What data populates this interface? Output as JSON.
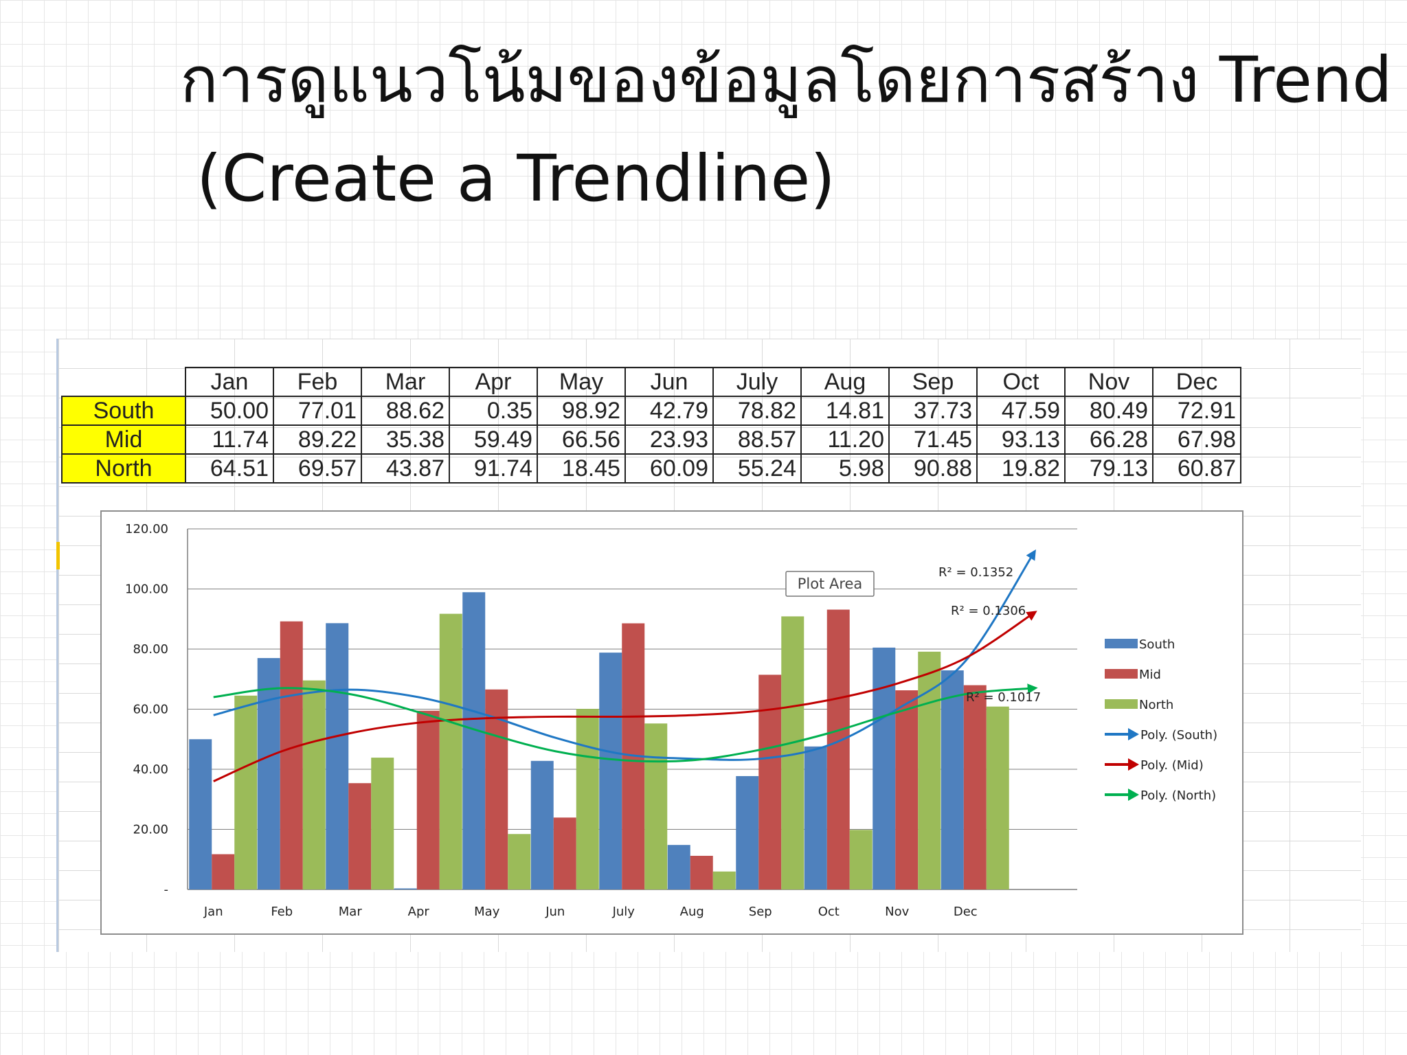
{
  "slide": {
    "title_thai": "การดูแนวโน้มของข้อมูลโดยการสร้าง",
    "title_en": "Trend",
    "subtitle": "(Create a Trendline)"
  },
  "table": {
    "headers": [
      "Jan",
      "Feb",
      "Mar",
      "Apr",
      "May",
      "Jun",
      "July",
      "Aug",
      "Sep",
      "Oct",
      "Nov",
      "Dec"
    ],
    "rows": [
      {
        "label": "South",
        "values": [
          "50.00",
          "77.01",
          "88.62",
          "0.35",
          "98.92",
          "42.79",
          "78.82",
          "14.81",
          "37.73",
          "47.59",
          "80.49",
          "72.91"
        ]
      },
      {
        "label": "Mid",
        "values": [
          "11.74",
          "89.22",
          "35.38",
          "59.49",
          "66.56",
          "23.93",
          "88.57",
          "11.20",
          "71.45",
          "93.13",
          "66.28",
          "67.98"
        ]
      },
      {
        "label": "North",
        "values": [
          "64.51",
          "69.57",
          "43.87",
          "91.74",
          "18.45",
          "60.09",
          "55.24",
          "5.98",
          "90.88",
          "19.82",
          "79.13",
          "60.87"
        ]
      }
    ]
  },
  "chart_data": {
    "type": "bar",
    "categories": [
      "Jan",
      "Feb",
      "Mar",
      "Apr",
      "May",
      "Jun",
      "July",
      "Aug",
      "Sep",
      "Oct",
      "Nov",
      "Dec"
    ],
    "series": [
      {
        "name": "South",
        "values": [
          50.0,
          77.01,
          88.62,
          0.35,
          98.92,
          42.79,
          78.82,
          14.81,
          37.73,
          47.59,
          80.49,
          72.91
        ],
        "color": "#4f81bd"
      },
      {
        "name": "Mid",
        "values": [
          11.74,
          89.22,
          35.38,
          59.49,
          66.56,
          23.93,
          88.57,
          11.2,
          71.45,
          93.13,
          66.28,
          67.98
        ],
        "color": "#c0504d"
      },
      {
        "name": "North",
        "values": [
          64.51,
          69.57,
          43.87,
          91.74,
          18.45,
          60.09,
          55.24,
          5.98,
          90.88,
          19.82,
          79.13,
          60.87
        ],
        "color": "#9bbb59"
      }
    ],
    "trendlines": [
      {
        "name": "Poly. (South)",
        "r2_label": "R² = 0.1352",
        "color": "#1f77c4",
        "points": [
          [
            1,
            58
          ],
          [
            2,
            64
          ],
          [
            3,
            66.5
          ],
          [
            4,
            64
          ],
          [
            5,
            58
          ],
          [
            6,
            50.5
          ],
          [
            7,
            45
          ],
          [
            8,
            43.5
          ],
          [
            9,
            43.5
          ],
          [
            10,
            48
          ],
          [
            11,
            60
          ],
          [
            12,
            76
          ],
          [
            13,
            112
          ]
        ]
      },
      {
        "name": "Poly. (Mid)",
        "r2_label": "R² = 0.1306",
        "color": "#c00000",
        "points": [
          [
            1,
            36
          ],
          [
            2,
            46
          ],
          [
            3,
            52
          ],
          [
            4,
            55.5
          ],
          [
            5,
            57
          ],
          [
            6,
            57.5
          ],
          [
            7,
            57.5
          ],
          [
            8,
            58
          ],
          [
            9,
            59.5
          ],
          [
            10,
            63
          ],
          [
            11,
            68.5
          ],
          [
            12,
            77
          ],
          [
            13,
            92
          ]
        ]
      },
      {
        "name": "Poly. (North)",
        "r2_label": "R² = 0.1017",
        "color": "#00b050",
        "points": [
          [
            1,
            64
          ],
          [
            2,
            67
          ],
          [
            3,
            65
          ],
          [
            4,
            59
          ],
          [
            5,
            52
          ],
          [
            6,
            46
          ],
          [
            7,
            43
          ],
          [
            8,
            43
          ],
          [
            9,
            46.5
          ],
          [
            10,
            52
          ],
          [
            11,
            59
          ],
          [
            12,
            65
          ],
          [
            13,
            67
          ]
        ]
      }
    ],
    "y_tick_labels": [
      "-",
      "20.00",
      "40.00",
      "60.00",
      "80.00",
      "100.00",
      "120.00"
    ],
    "ylim": [
      0,
      120
    ],
    "grid": true,
    "legend_position": "right",
    "tooltip": "Plot Area"
  }
}
